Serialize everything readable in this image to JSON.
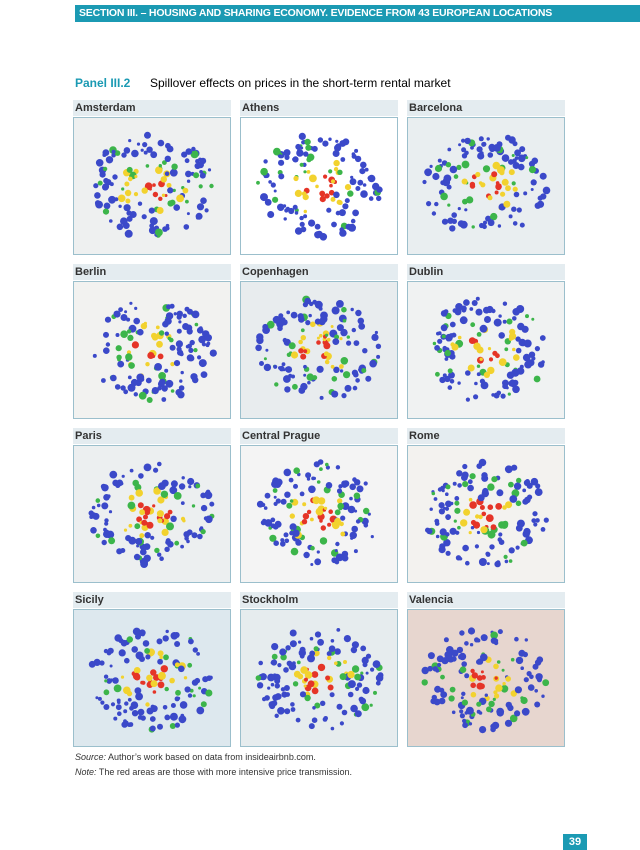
{
  "header": {
    "section": "SECTION III. – HOUSING AND SHARING ECONOMY. EVIDENCE FROM 43 EUROPEAN LOCATIONS"
  },
  "panel": {
    "label": "Panel III.2",
    "title": "Spillover effects on prices in the short-term rental market"
  },
  "maps": [
    {
      "name": "Amsterdam"
    },
    {
      "name": "Athens"
    },
    {
      "name": "Barcelona"
    },
    {
      "name": "Berlin"
    },
    {
      "name": "Copenhagen"
    },
    {
      "name": "Dublin"
    },
    {
      "name": "Paris"
    },
    {
      "name": "Central Prague"
    },
    {
      "name": "Rome"
    },
    {
      "name": "Sicily"
    },
    {
      "name": "Stockholm"
    },
    {
      "name": "Valencia"
    }
  ],
  "source": {
    "label": "Source:",
    "text": "Author’s work based on data from insideairbnb.com."
  },
  "note": {
    "label": "Note:",
    "text": "The red areas are those with more intensive price transmission."
  },
  "page_number": "39"
}
